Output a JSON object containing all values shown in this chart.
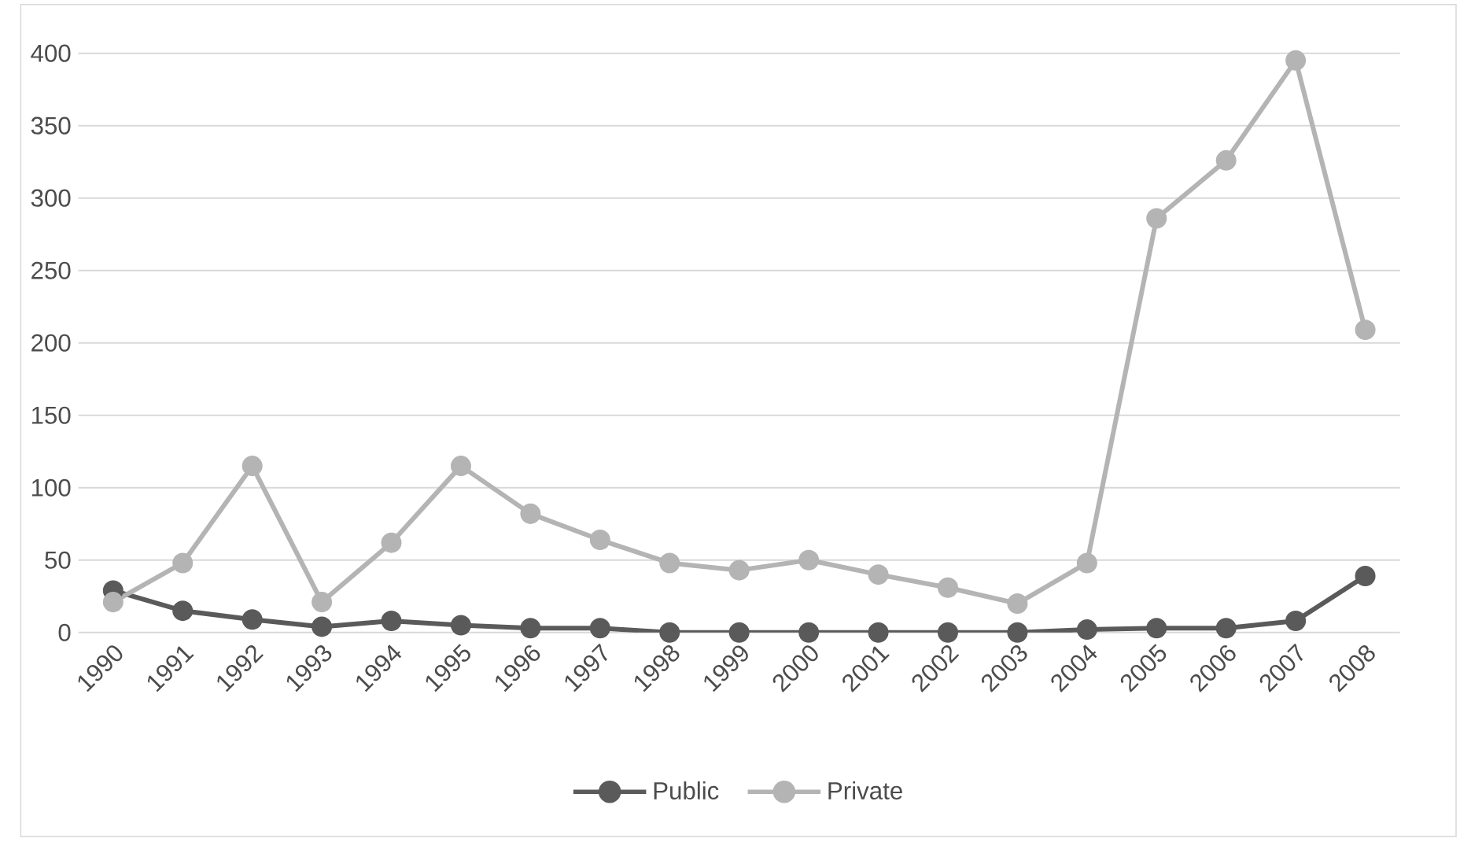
{
  "chart_data": {
    "type": "line",
    "categories": [
      "1990",
      "1991",
      "1992",
      "1993",
      "1994",
      "1995",
      "1996",
      "1997",
      "1998",
      "1999",
      "2000",
      "2001",
      "2002",
      "2003",
      "2004",
      "2005",
      "2006",
      "2007",
      "2008"
    ],
    "series": [
      {
        "name": "Public",
        "color": "#5a5a5a",
        "values": [
          29,
          15,
          9,
          4,
          8,
          5,
          3,
          3,
          0,
          0,
          0,
          0,
          0,
          0,
          2,
          3,
          3,
          8,
          39
        ]
      },
      {
        "name": "Private",
        "color": "#b4b4b4",
        "values": [
          21,
          48,
          115,
          21,
          62,
          115,
          82,
          64,
          48,
          43,
          50,
          40,
          31,
          20,
          48,
          286,
          326,
          395,
          209
        ]
      }
    ],
    "ylim": [
      0,
      400
    ],
    "yticks": [
      0,
      50,
      100,
      150,
      200,
      250,
      300,
      350,
      400
    ],
    "grid": "y",
    "legend": "bottom",
    "marker": "circle",
    "line_style": "solid"
  }
}
